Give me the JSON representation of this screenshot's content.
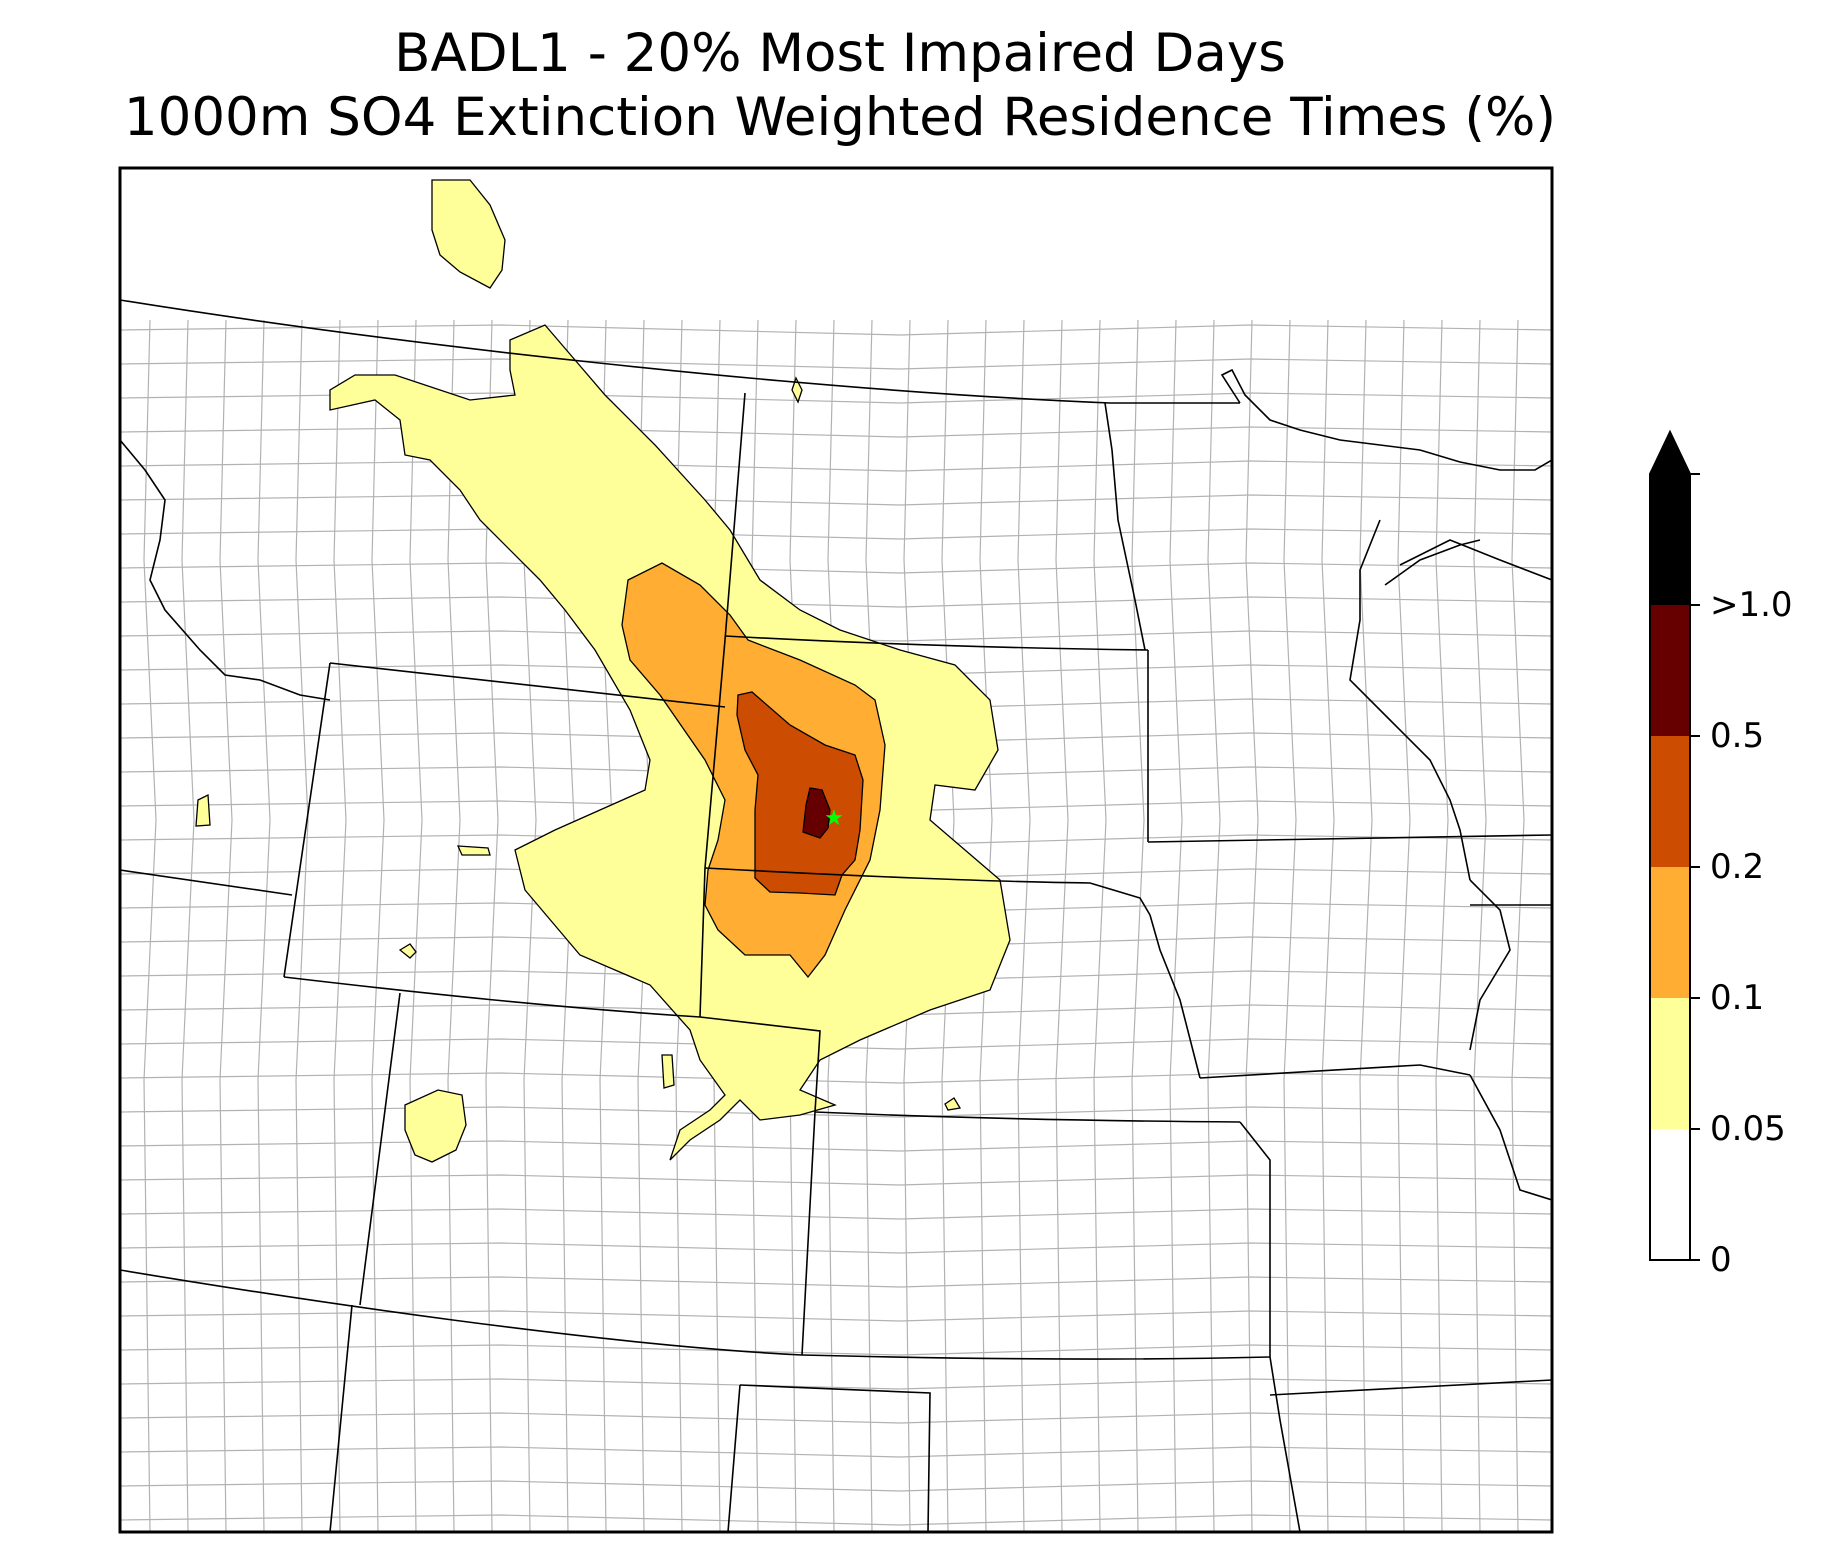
{
  "title": {
    "line1": "BADL1 - 20% Most Impaired Days",
    "line2": "1000m SO4 Extinction Weighted Residence Times (%)"
  },
  "site_marker": {
    "icon": "star-icon",
    "color": "#00ff00"
  },
  "colorbar": {
    "extend": "max",
    "levels": [
      {
        "from": 0,
        "to": 0.05,
        "color": "#ffffff"
      },
      {
        "from": 0.05,
        "to": 0.1,
        "color": "#ffff99"
      },
      {
        "from": 0.1,
        "to": 0.2,
        "color": "#ffad33"
      },
      {
        "from": 0.2,
        "to": 0.5,
        "color": "#cc4c02"
      },
      {
        "from": 0.5,
        "to": 1.0,
        "color": "#660000"
      },
      {
        "from": 1.0,
        "to": null,
        "color": "#000000"
      }
    ],
    "tick_labels": [
      "0",
      "0.05",
      "0.1",
      "0.2",
      "0.5",
      ">1.0"
    ]
  },
  "colors": {
    "state_border": "#000000",
    "county_border": "#aaaaaa",
    "contour_edge": "#000000"
  }
}
